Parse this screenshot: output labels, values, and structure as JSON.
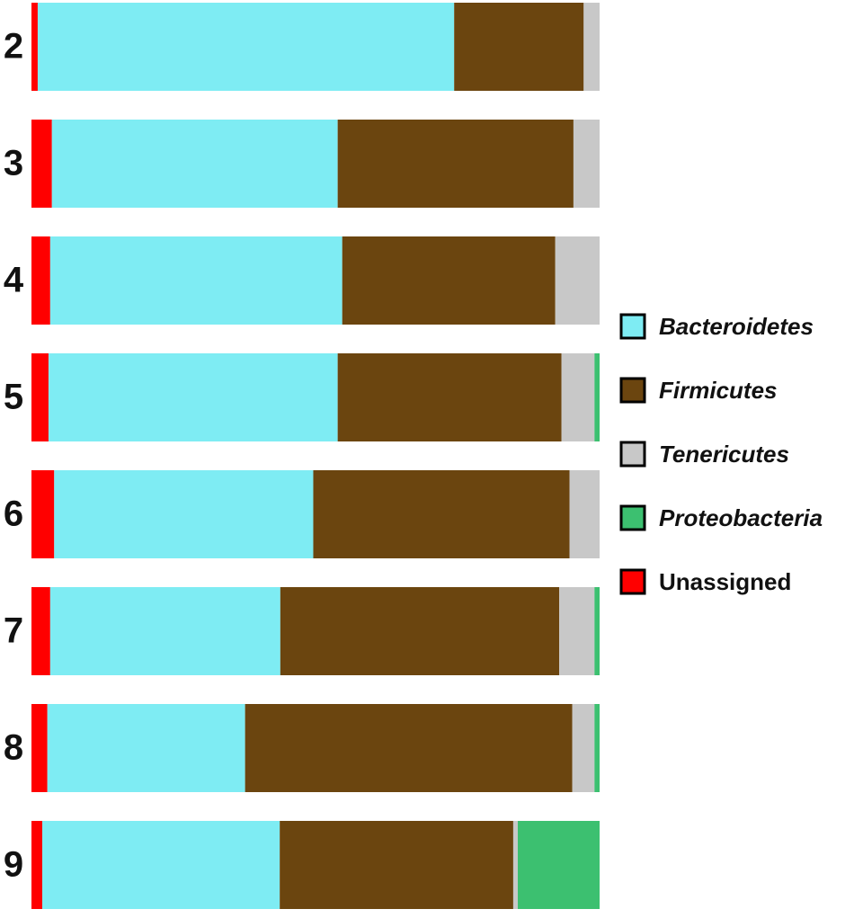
{
  "chart_data": {
    "type": "bar",
    "orientation": "horizontal",
    "stacked": true,
    "categories": [
      "2",
      "3",
      "4",
      "5",
      "6",
      "7",
      "8",
      "9"
    ],
    "xlim": [
      0,
      100
    ],
    "series": [
      {
        "name": "Bacteroidetes",
        "color": "#7eecf3",
        "italic": true,
        "values": [
          73.3,
          50.3,
          51.4,
          50.9,
          45.6,
          40.5,
          34.8,
          41.8
        ]
      },
      {
        "name": "Firmicutes",
        "color": "#6b450f",
        "italic": true,
        "values": [
          22.8,
          41.5,
          37.5,
          39.4,
          45.1,
          49.1,
          57.6,
          41.1
        ]
      },
      {
        "name": "Tenericutes",
        "color": "#c8c8c8",
        "italic": true,
        "values": [
          2.8,
          4.6,
          7.8,
          5.8,
          5.3,
          6.2,
          3.9,
          0.8
        ]
      },
      {
        "name": "Proteobacteria",
        "color": "#3cc070",
        "italic": true,
        "values": [
          0,
          0,
          0,
          0.9,
          0,
          0.9,
          0.9,
          14.4
        ]
      },
      {
        "name": "Unassigned",
        "color": "#ff0000",
        "italic": false,
        "values": [
          1.1,
          3.6,
          3.3,
          3.0,
          4.0,
          3.3,
          2.8,
          1.9
        ]
      }
    ],
    "legend": "right"
  }
}
